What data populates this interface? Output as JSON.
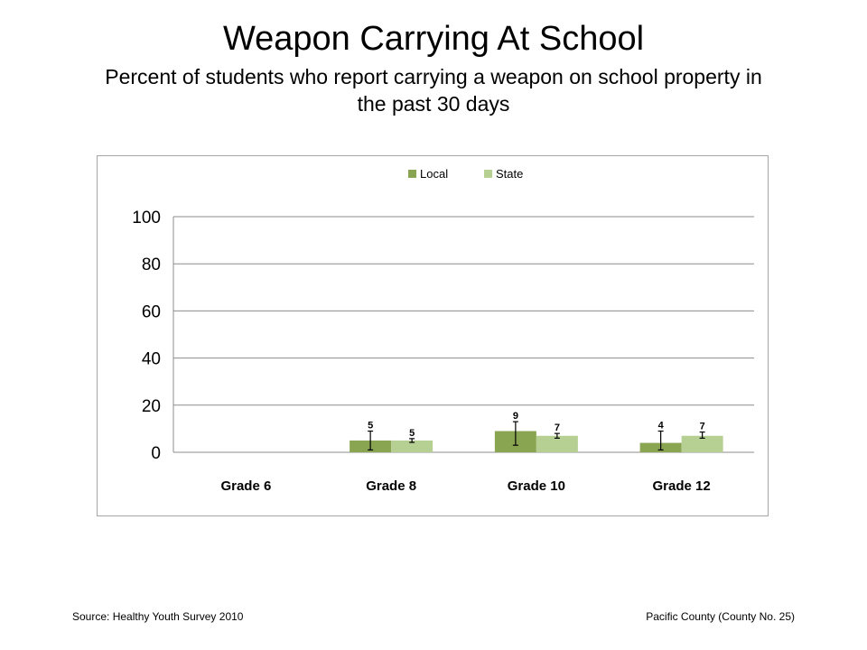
{
  "title": "Weapon Carrying At School",
  "subtitle": "Percent of students who report carrying a weapon on school property in the past 30 days",
  "footer": {
    "source": "Source: Healthy Youth Survey 2010",
    "county": "Pacific County (County No. 25)"
  },
  "chart_data": {
    "type": "bar",
    "categories": [
      "Grade 6",
      "Grade 8",
      "Grade 10",
      "Grade 12"
    ],
    "series": [
      {
        "name": "Local",
        "color": "#8aa552",
        "values": [
          null,
          5,
          9,
          4
        ],
        "labels": [
          "",
          "5",
          "9",
          "4"
        ],
        "error_low": [
          null,
          1,
          3,
          1
        ],
        "error_high": [
          null,
          9,
          13,
          9
        ]
      },
      {
        "name": "State",
        "color": "#b6cf92",
        "values": [
          null,
          5,
          7,
          7
        ],
        "labels": [
          "",
          "5",
          "7",
          "7"
        ],
        "error_low": [
          null,
          4.2,
          6,
          6
        ],
        "error_high": [
          null,
          5.8,
          8,
          8.6
        ]
      }
    ],
    "yticks": [
      "0",
      "20",
      "40",
      "60",
      "80",
      "100"
    ],
    "ylim": [
      0,
      100
    ],
    "grid": true,
    "legend": "top-center"
  }
}
